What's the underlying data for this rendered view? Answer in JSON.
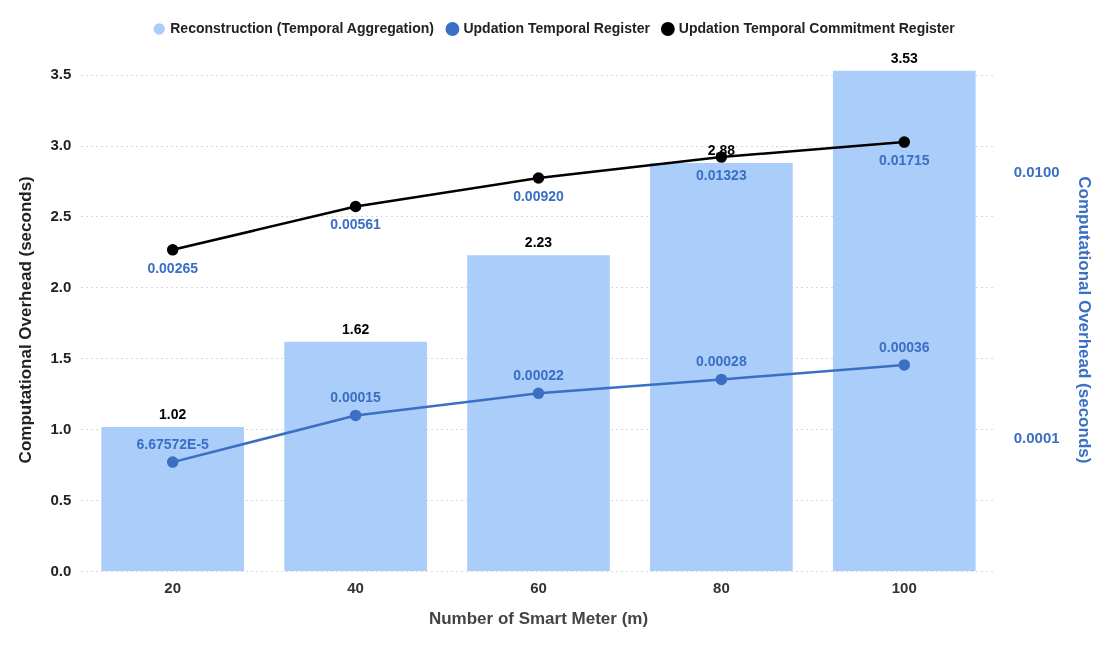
{
  "chart_data": {
    "type": "bar",
    "xlabel": "Number of Smart Meter (m)",
    "ylabel": "Computational Overhead (seconds)",
    "y2label": "Computational Overhead (seconds)",
    "categories": [
      "20",
      "40",
      "60",
      "80",
      "100"
    ],
    "series": [
      {
        "name": "Reconstruction (Temporal Aggregation)",
        "color": "#aacdf9",
        "values": [
          1.02,
          1.62,
          2.23,
          2.88,
          3.53
        ],
        "value_labels": [
          "1.02",
          "1.62",
          "2.23",
          "2.88",
          "3.53"
        ]
      },
      {
        "name": "Updation Temporal Register",
        "type": "line",
        "axis": "y2",
        "color": "#3a6fc4",
        "values": [
          6.67572e-05,
          0.00015,
          0.00022,
          0.00028,
          0.00036
        ],
        "value_labels": [
          "6.67572E-5",
          "0.00015",
          "0.00022",
          "0.00028",
          "0.00036"
        ]
      },
      {
        "name": "Updation Temporal Commitment Register",
        "type": "line",
        "axis": "y2",
        "color": "#000000",
        "values": [
          0.00265,
          0.00561,
          0.0092,
          0.01323,
          0.01715
        ],
        "value_labels": [
          "0.00265",
          "0.00561",
          "0.00920",
          "0.01323",
          "0.01715"
        ]
      }
    ],
    "ylim": [
      0,
      3.55
    ],
    "yticks": [
      {
        "value": 0,
        "label": "0.0"
      },
      {
        "value": 0.5,
        "label": "0.5"
      },
      {
        "value": 1,
        "label": "1.0"
      },
      {
        "value": 1.5,
        "label": "1.5"
      },
      {
        "value": 2,
        "label": "2.0"
      },
      {
        "value": 2.5,
        "label": "2.5"
      },
      {
        "value": 3,
        "label": "3.0"
      },
      {
        "value": 3.5,
        "label": "3.5"
      }
    ],
    "y2lim": [
      1e-05,
      0.062
    ],
    "y2ticks": [
      {
        "value": 0.0001,
        "label": "0.0001"
      },
      {
        "value": 0.01,
        "label": "0.0100"
      }
    ],
    "log": "y2",
    "grid": "y",
    "legend": "top",
    "marker": "circle",
    "line_style": "solid"
  }
}
